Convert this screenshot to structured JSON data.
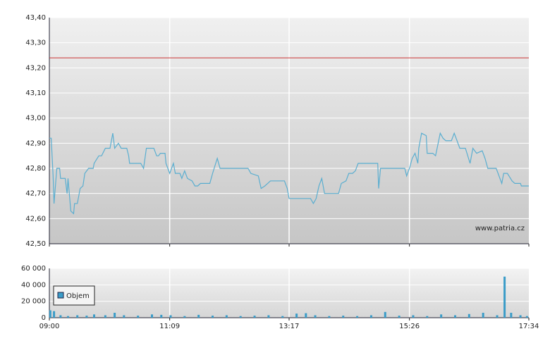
{
  "chart_data": [
    {
      "type": "line",
      "xlim": [
        540,
        1054
      ],
      "ylim": [
        42.5,
        43.4
      ],
      "yticks": [
        {
          "value": 42.5,
          "label": "42,50"
        },
        {
          "value": 42.6,
          "label": "42,60"
        },
        {
          "value": 42.7,
          "label": "42,70"
        },
        {
          "value": 42.8,
          "label": "42,80"
        },
        {
          "value": 42.9,
          "label": "42,90"
        },
        {
          "value": 43.0,
          "label": "43,00"
        },
        {
          "value": 43.1,
          "label": "43,10"
        },
        {
          "value": 43.2,
          "label": "43,20"
        },
        {
          "value": 43.3,
          "label": "43,30"
        },
        {
          "value": 43.4,
          "label": "43,40"
        }
      ],
      "grid": true,
      "reference_line": {
        "value": 43.24,
        "color": "#cc3333"
      },
      "watermark": "www.patria.cz",
      "series": [
        {
          "color": "#5aaed0",
          "x": [
            540,
            542,
            544,
            545,
            548,
            551,
            552,
            557,
            559,
            560,
            563,
            566,
            567,
            570,
            573,
            576,
            578,
            582,
            587,
            588,
            593,
            596,
            600,
            605,
            608,
            610,
            614,
            617,
            623,
            625,
            626,
            638,
            641,
            644,
            652,
            655,
            657,
            659,
            664,
            665,
            669,
            673,
            675,
            680,
            682,
            685,
            688,
            693,
            696,
            699,
            702,
            712,
            715,
            720,
            723,
            753,
            756,
            764,
            767,
            771,
            774,
            777,
            792,
            795,
            797,
            820,
            823,
            826,
            829,
            832,
            835,
            850,
            853,
            858,
            861,
            865,
            868,
            871,
            892,
            893,
            895,
            921,
            923,
            926,
            929,
            932,
            935,
            936,
            939,
            944,
            945,
            951,
            954,
            959,
            962,
            965,
            971,
            974,
            977,
            980,
            986,
            991,
            994,
            998,
            1004,
            1007,
            1010,
            1019,
            1022,
            1025,
            1027,
            1031,
            1036,
            1039,
            1045,
            1046,
            1054
          ],
          "values": [
            42.92,
            42.92,
            42.77,
            42.66,
            42.8,
            42.8,
            42.76,
            42.76,
            42.7,
            42.76,
            42.63,
            42.62,
            42.66,
            42.66,
            42.72,
            42.73,
            42.78,
            42.8,
            42.8,
            42.82,
            42.85,
            42.85,
            42.88,
            42.88,
            42.94,
            42.88,
            42.9,
            42.88,
            42.88,
            42.85,
            42.82,
            42.82,
            42.8,
            42.88,
            42.88,
            42.85,
            42.85,
            42.86,
            42.86,
            42.82,
            42.78,
            42.82,
            42.78,
            42.78,
            42.76,
            42.79,
            42.76,
            42.75,
            42.73,
            42.73,
            42.74,
            42.74,
            42.78,
            42.84,
            42.8,
            42.8,
            42.78,
            42.77,
            42.72,
            42.73,
            42.74,
            42.75,
            42.75,
            42.72,
            42.68,
            42.68,
            42.66,
            42.68,
            42.73,
            42.76,
            42.7,
            42.7,
            42.74,
            42.75,
            42.78,
            42.78,
            42.79,
            42.82,
            42.82,
            42.72,
            42.8,
            42.8,
            42.77,
            42.8,
            42.84,
            42.86,
            42.82,
            42.88,
            42.94,
            42.93,
            42.86,
            42.86,
            42.85,
            42.94,
            42.92,
            42.91,
            42.91,
            42.94,
            42.91,
            42.88,
            42.88,
            42.82,
            42.88,
            42.86,
            42.87,
            42.84,
            42.8,
            42.8,
            42.77,
            42.74,
            42.78,
            42.78,
            42.75,
            42.74,
            42.74,
            42.73,
            42.73
          ]
        }
      ]
    },
    {
      "type": "bar",
      "xlim": [
        540,
        1054
      ],
      "xticks": [
        {
          "value": 540,
          "label": "09:00"
        },
        {
          "value": 669,
          "label": "11:09"
        },
        {
          "value": 797,
          "label": "13:17"
        },
        {
          "value": 926,
          "label": "15:26"
        },
        {
          "value": 1054,
          "label": "17:34"
        }
      ],
      "ylim": [
        0,
        60000
      ],
      "yticks": [
        0,
        {
          "value": 20000,
          "label": "20 000"
        },
        {
          "value": 40000,
          "label": "40 000"
        },
        {
          "value": 60000,
          "label": "60 000"
        }
      ],
      "grid": true,
      "legend": "upper left",
      "series": [
        {
          "name": "Objem",
          "color": "#3a9cc8",
          "x": [
            541,
            545,
            552,
            560,
            570,
            580,
            588,
            600,
            610,
            620,
            635,
            650,
            660,
            670,
            685,
            700,
            715,
            730,
            745,
            760,
            775,
            790,
            805,
            815,
            825,
            840,
            855,
            870,
            885,
            900,
            915,
            930,
            945,
            960,
            975,
            990,
            1005,
            1020,
            1028,
            1035,
            1045,
            1052
          ],
          "values": [
            9000,
            8000,
            3000,
            2000,
            3000,
            2500,
            4000,
            3000,
            6000,
            3000,
            2500,
            4000,
            3500,
            3000,
            2000,
            3500,
            2500,
            3000,
            2000,
            2500,
            3000,
            2000,
            5000,
            5500,
            3000,
            2000,
            2500,
            2000,
            3000,
            7000,
            2500,
            3000,
            2000,
            4000,
            3000,
            4500,
            6000,
            3000,
            50000,
            6000,
            3000,
            2000
          ]
        }
      ]
    }
  ]
}
